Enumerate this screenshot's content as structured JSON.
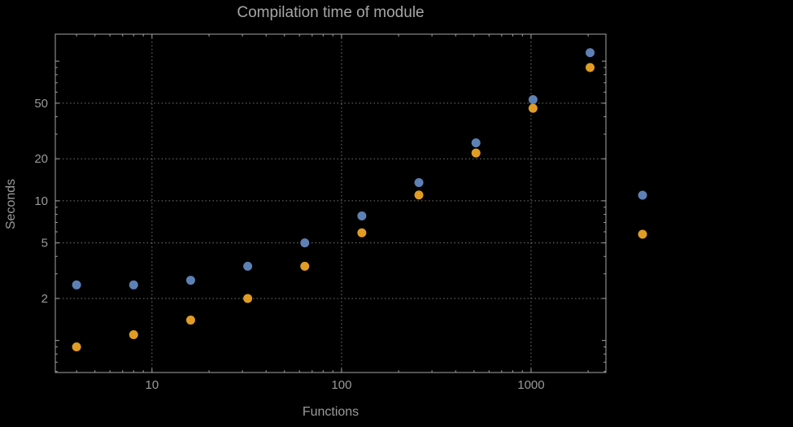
{
  "chart_data": {
    "type": "scatter",
    "title": "Compilation time of module",
    "xlabel": "Functions",
    "ylabel": "Seconds",
    "xscale": "log",
    "yscale": "log",
    "xlim": [
      3.09,
      2483
    ],
    "ylim": [
      0.59,
      156
    ],
    "x": [
      4,
      8,
      16,
      32,
      64,
      128,
      256,
      512,
      1024,
      2048
    ],
    "series": [
      {
        "name": "series-blue",
        "color": "#5e81b5",
        "values": [
          2.5,
          2.5,
          2.7,
          3.4,
          5.0,
          7.8,
          13.5,
          26,
          53,
          115
        ]
      },
      {
        "name": "series-orange",
        "color": "#e19c24",
        "values": [
          0.9,
          1.1,
          1.4,
          2.0,
          3.4,
          5.9,
          11,
          22,
          46,
          90
        ]
      }
    ],
    "x_ticks": [
      10,
      100,
      1000
    ],
    "y_ticks": [
      2,
      5,
      10,
      20,
      50
    ],
    "grid": "dotted",
    "legend_position": "right"
  },
  "legend": {
    "items": [
      {
        "color": "#5e81b5",
        "label": ""
      },
      {
        "color": "#e19c24",
        "label": ""
      }
    ]
  },
  "colors": {
    "background": "#000000",
    "text": "#9a9a9a",
    "frame": "#a3a3a3",
    "grid": "#757575",
    "blue": "#5e81b5",
    "orange": "#e19c24"
  }
}
